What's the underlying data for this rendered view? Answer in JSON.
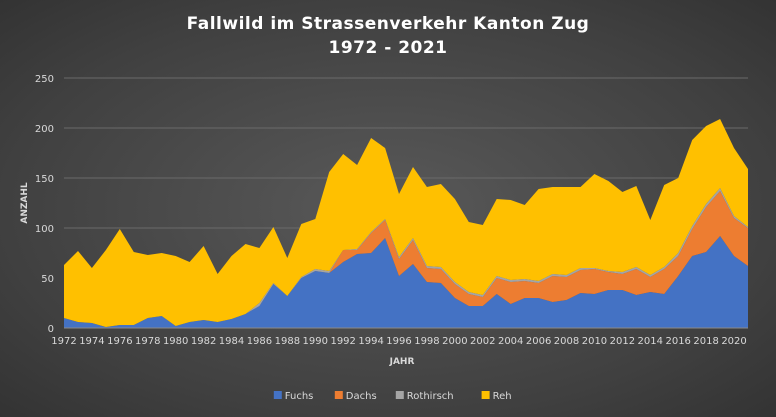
{
  "chart_data": {
    "type": "area",
    "stacked": true,
    "title_line1": "Fallwild  im Strassenverkehr  Kanton  Zug",
    "title_line2": "1972 - 2021",
    "xlabel": "JAHR",
    "ylabel": "ANZAHL",
    "ylim": [
      0,
      250
    ],
    "yticks": [
      0,
      50,
      100,
      150,
      200,
      250
    ],
    "xticks": [
      1972,
      1974,
      1976,
      1978,
      1980,
      1982,
      1984,
      1986,
      1988,
      1990,
      1992,
      1994,
      1996,
      1998,
      2000,
      2002,
      2004,
      2006,
      2008,
      2010,
      2012,
      2014,
      2016,
      2018,
      2020
    ],
    "grid": true,
    "legend_position": "bottom",
    "x": [
      1972,
      1973,
      1974,
      1975,
      1976,
      1977,
      1978,
      1979,
      1980,
      1981,
      1982,
      1983,
      1984,
      1985,
      1986,
      1987,
      1988,
      1989,
      1990,
      1991,
      1992,
      1993,
      1994,
      1995,
      1996,
      1997,
      1998,
      1999,
      2000,
      2001,
      2002,
      2003,
      2004,
      2005,
      2006,
      2007,
      2008,
      2009,
      2010,
      2011,
      2012,
      2013,
      2014,
      2015,
      2016,
      2017,
      2018,
      2019,
      2020,
      2021
    ],
    "series": [
      {
        "name": "Fuchs",
        "color": "#4472c4",
        "values": [
          10,
          6,
          5,
          1,
          3,
          3,
          10,
          12,
          2,
          6,
          8,
          6,
          9,
          14,
          22,
          44,
          32,
          50,
          57,
          55,
          66,
          74,
          75,
          90,
          52,
          64,
          46,
          45,
          30,
          22,
          22,
          34,
          24,
          30,
          30,
          26,
          28,
          35,
          34,
          38,
          38,
          33,
          36,
          34,
          52,
          72,
          76,
          92,
          72,
          62
        ]
      },
      {
        "name": "Dachs",
        "color": "#ed7d31",
        "values": [
          0,
          0,
          0,
          0,
          0,
          0,
          0,
          0,
          0,
          0,
          0,
          0,
          0,
          0,
          0,
          0,
          0,
          0,
          0,
          0,
          12,
          4,
          20,
          18,
          17,
          24,
          14,
          14,
          14,
          12,
          9,
          16,
          22,
          17,
          15,
          26,
          23,
          23,
          25,
          18,
          16,
          26,
          15,
          25,
          20,
          27,
          45,
          45,
          38,
          38
        ]
      },
      {
        "name": "Rothirsch",
        "color": "#a5a5a5",
        "values": [
          0,
          0,
          0,
          0,
          0,
          0,
          0,
          0,
          0,
          0,
          0,
          0,
          0,
          0,
          3,
          1,
          0,
          1,
          2,
          2,
          0,
          1,
          1,
          1,
          2,
          2,
          2,
          2,
          2,
          2,
          2,
          2,
          2,
          2,
          2,
          2,
          2,
          2,
          1,
          1,
          2,
          2,
          2,
          2,
          3,
          3,
          3,
          3,
          2,
          1
        ]
      },
      {
        "name": "Reh",
        "color": "#ffc000",
        "values": [
          53,
          71,
          55,
          77,
          96,
          73,
          63,
          63,
          70,
          60,
          74,
          48,
          63,
          70,
          55,
          56,
          38,
          53,
          50,
          99,
          96,
          84,
          94,
          71,
          63,
          71,
          79,
          83,
          83,
          70,
          70,
          77,
          80,
          74,
          92,
          87,
          88,
          81,
          94,
          90,
          80,
          81,
          55,
          82,
          75,
          86,
          78,
          69,
          68,
          58
        ]
      }
    ]
  }
}
